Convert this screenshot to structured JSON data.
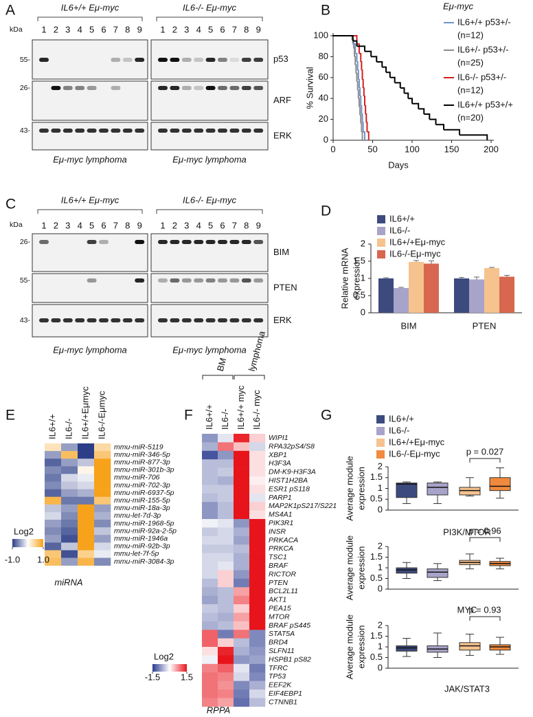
{
  "blots": [
    {
      "panel": "A",
      "groups": [
        {
          "title": "IL6+/+ Eμ-myc",
          "footer": "Eμ-myc lymphoma"
        },
        {
          "title": "IL6-/- Eμ-myc",
          "footer": "Eμ-myc lymphoma"
        }
      ],
      "lanes": [
        1,
        2,
        3,
        4,
        5,
        6,
        7,
        8,
        9
      ],
      "kda": "kDa",
      "rows": [
        {
          "marker": "55-",
          "protein": "p53"
        },
        {
          "marker": "26-",
          "protein": "ARF"
        },
        {
          "marker": "43-",
          "protein": "ERK"
        }
      ]
    },
    {
      "panel": "C",
      "groups": [
        {
          "title": "IL6+/+ Eμ-myc",
          "footer": "Eμ-myc lymphoma"
        },
        {
          "title": "IL6-/- Eμ-myc",
          "footer": "Eμ-myc lymphoma"
        }
      ],
      "lanes": [
        1,
        2,
        3,
        4,
        5,
        6,
        7,
        8,
        9
      ],
      "kda": "kDa",
      "rows": [
        {
          "marker": "26-",
          "protein": "BIM"
        },
        {
          "marker": "55-",
          "protein": "PTEN"
        },
        {
          "marker": "43-",
          "protein": "ERK"
        }
      ]
    }
  ],
  "chart_data": [
    {
      "panel": "B",
      "type": "survival",
      "title": "Eμ-myc",
      "xlabel": "Days",
      "ylabel": "% Survival",
      "xlim": [
        0,
        200
      ],
      "xticks": [
        0,
        50,
        100,
        150,
        200
      ],
      "ylim": [
        0,
        100
      ],
      "yticks": [
        0,
        20,
        40,
        60,
        80,
        100
      ],
      "series": [
        {
          "name": "IL6+/+ p53+/-",
          "n_label": "(n=12)",
          "color": "#6f93c8",
          "x": [
            0,
            25,
            28,
            30,
            31,
            32,
            33,
            34,
            35,
            36,
            37,
            38,
            40
          ],
          "values": [
            100,
            92,
            83,
            75,
            67,
            58,
            50,
            42,
            33,
            25,
            17,
            8,
            0
          ]
        },
        {
          "name": "IL6+/- p53+/-",
          "n_label": "(n=25)",
          "color": "#8c8c8c",
          "x": [
            0,
            24,
            26,
            27,
            28,
            29,
            30,
            31,
            32,
            33,
            34,
            35,
            36,
            37
          ],
          "values": [
            100,
            96,
            88,
            80,
            72,
            64,
            56,
            48,
            40,
            32,
            24,
            16,
            8,
            0
          ]
        },
        {
          "name": "IL6-/- p53+/-",
          "n_label": "(n=12)",
          "color": "#d42020",
          "x": [
            0,
            30,
            33,
            35,
            36,
            37,
            38,
            39,
            40,
            41,
            42,
            43,
            45
          ],
          "values": [
            100,
            92,
            83,
            75,
            67,
            58,
            50,
            42,
            33,
            25,
            17,
            8,
            0
          ]
        },
        {
          "name": "IL6+/+ p53+/+",
          "n_label": "(n=20)",
          "color": "#000000",
          "x": [
            0,
            25,
            30,
            40,
            48,
            55,
            62,
            67,
            72,
            78,
            85,
            90,
            95,
            100,
            108,
            115,
            122,
            130,
            140,
            160,
            195
          ],
          "values": [
            100,
            95,
            90,
            85,
            80,
            75,
            70,
            65,
            60,
            55,
            50,
            45,
            40,
            35,
            30,
            25,
            20,
            15,
            10,
            5,
            0
          ]
        }
      ]
    },
    {
      "panel": "D",
      "type": "bar",
      "ylabel": [
        "Relative mRNA",
        "expression"
      ],
      "categories": [
        "BIM",
        "PTEN"
      ],
      "ylim": [
        0,
        2
      ],
      "yticks": [
        0,
        0.5,
        1,
        1.5,
        2
      ],
      "series": [
        {
          "name": "IL6+/+",
          "color": "#3d4a7e",
          "values": [
            1.0,
            1.0
          ],
          "errors": [
            0.02,
            0.03
          ]
        },
        {
          "name": "IL6-/-",
          "color": "#a8a3c9",
          "values": [
            0.72,
            0.97
          ],
          "errors": [
            0.02,
            0.07
          ]
        },
        {
          "name": "IL6+/+Eμ-myc",
          "color": "#f6c28e",
          "values": [
            1.48,
            1.3
          ],
          "errors": [
            0.04,
            0.02
          ]
        },
        {
          "name": "IL6-/-Eμ-myc",
          "color": "#d8674f",
          "values": [
            1.43,
            1.05
          ],
          "errors": [
            0.08,
            0.04
          ]
        }
      ]
    },
    {
      "panel": "E",
      "type": "heatmap",
      "footer": "miRNA",
      "columns": [
        "IL6+/+",
        "IL6-/-",
        "IL6+/+Eμmyc",
        "IL6-/-Eμmyc"
      ],
      "rows": [
        "mmu-miR-5119",
        "mmu-miR-346-5p",
        "mmu-miR-877-3p",
        "mmu-miR-301b-3p",
        "mmu-miR-706",
        "mmu-miR-702-3p",
        "mmu-miR-6937-5p",
        "mmu-miR-155-5p",
        "mmu-miR-18a-3p",
        "mmu-let-7d-3p",
        "mmu-miR-1968-5p",
        "mmu-miR-92a-2-5p",
        "mmu-miR-1946a",
        "mmu-miR-92b-3p",
        "mmu-let-7f-5p",
        "mmu-miR-3084-3p"
      ],
      "values": [
        [
          0.3,
          -0.5,
          -1,
          0.4
        ],
        [
          -0.5,
          0.7,
          -1,
          0.6
        ],
        [
          -0.8,
          -0.5,
          -0.3,
          1
        ],
        [
          -0.6,
          -0.7,
          0.1,
          1
        ],
        [
          -0.7,
          -0.2,
          -0.1,
          1
        ],
        [
          -0.6,
          -0.3,
          -0.2,
          1
        ],
        [
          -0.8,
          -0.5,
          -0.4,
          1
        ],
        [
          0.8,
          -0.7,
          -0.7,
          0.6
        ],
        [
          -0.3,
          -0.5,
          1,
          -0.5
        ],
        [
          -0.2,
          -0.6,
          1,
          -0.4
        ],
        [
          -0.5,
          -0.7,
          1,
          -0.6
        ],
        [
          -0.6,
          -0.8,
          1,
          -0.3
        ],
        [
          -0.5,
          -0.9,
          1,
          -0.5
        ],
        [
          -0.8,
          -0.3,
          1,
          -0.2
        ],
        [
          0.6,
          -0.9,
          0.5,
          -0.1
        ],
        [
          0.7,
          -0.5,
          0.8,
          -0.6
        ]
      ],
      "colorscale": {
        "title": "Log2",
        "lim": [
          -1,
          1
        ],
        "colors": [
          "#2c3e87",
          "#ffffff",
          "#f7a21b"
        ],
        "ticks": [
          {
            "value": -1,
            "label": "-1.0"
          },
          {
            "value": 1,
            "label": "1.0"
          }
        ]
      }
    },
    {
      "panel": "F",
      "type": "heatmap",
      "footer": "RPPA",
      "column_groups": [
        "BM",
        "lymphoma"
      ],
      "columns": [
        "IL6+/+",
        "IL6-/-",
        "IL6+/+ myc",
        "IL6-/- myc"
      ],
      "rows": [
        "WIPI1",
        "RPA32pS4/S8",
        "XBP1",
        "H3F3A",
        "DM-K9-H3F3A",
        "HIST1H2BA",
        "ESR1 pS118",
        "PARP1",
        "MAP2K1pS217/S221",
        "MS4A1",
        "PIK3R1",
        "INSR",
        "PRKACA",
        "PRKCA",
        "TSC1",
        "BRAF",
        "RICTOR",
        "PTEN",
        "BCL2L11",
        "AKT1",
        "PEA15",
        "MTOR",
        "BRAF pS445",
        "STAT5A",
        "BRD4",
        "SLFN11",
        "HSPB1 pS82",
        "TFRC",
        "TP53",
        "EEF2K",
        "EIF4EBP1",
        "CTNNB1"
      ],
      "values": [
        [
          -0.8,
          -0.2,
          1.4,
          0.3
        ],
        [
          -0.6,
          0.9,
          0.4,
          -0.3
        ],
        [
          -1.3,
          -0.8,
          1.5,
          0.2
        ],
        [
          -0.5,
          -0.5,
          1.5,
          0.2
        ],
        [
          -0.5,
          -0.4,
          1.5,
          0.2
        ],
        [
          -0.5,
          -0.6,
          1.5,
          0.1
        ],
        [
          -0.4,
          -0.4,
          1.5,
          0.2
        ],
        [
          -0.5,
          -0.4,
          1.5,
          -0.2
        ],
        [
          -0.8,
          -0.5,
          1.5,
          0.3
        ],
        [
          -0.8,
          -0.5,
          1.5,
          0.2
        ],
        [
          -0.1,
          -0.2,
          -0.8,
          1.5
        ],
        [
          -0.4,
          -0.3,
          -0.6,
          1.5
        ],
        [
          -0.3,
          -0.3,
          -0.7,
          1.5
        ],
        [
          -0.4,
          -0.4,
          -0.5,
          1.5
        ],
        [
          -0.3,
          -0.3,
          -0.6,
          1.5
        ],
        [
          -0.3,
          -0.2,
          -0.6,
          1.5
        ],
        [
          -0.3,
          0.3,
          -0.8,
          1.5
        ],
        [
          -0.5,
          0.3,
          -1.0,
          1.5
        ],
        [
          -0.6,
          -0.5,
          0.6,
          1.5
        ],
        [
          -0.7,
          -0.5,
          0.8,
          1.5
        ],
        [
          -0.4,
          -0.5,
          0.3,
          1.5
        ],
        [
          -0.5,
          -0.6,
          0.6,
          1.5
        ],
        [
          -0.6,
          -0.5,
          0.4,
          1.5
        ],
        [
          1.0,
          -1.0,
          0.9,
          -0.9
        ],
        [
          1.0,
          0.3,
          -0.5,
          -0.9
        ],
        [
          0.2,
          1.4,
          -0.6,
          -0.8
        ],
        [
          -0.1,
          1.5,
          -0.8,
          -0.7
        ],
        [
          0.8,
          1.0,
          -0.2,
          -1.0
        ],
        [
          0.9,
          0.8,
          -0.3,
          -0.9
        ],
        [
          0.9,
          0.7,
          -0.9,
          -0.6
        ],
        [
          0.9,
          0.8,
          -1.0,
          -0.3
        ],
        [
          0.8,
          0.6,
          -1.1,
          -0.5
        ]
      ],
      "colorscale": {
        "title": "Log2",
        "lim": [
          -1.5,
          1.5
        ],
        "colors": [
          "#2b3a8f",
          "#ffffff",
          "#e8141c"
        ],
        "ticks": [
          -1.5,
          1.5
        ]
      }
    },
    {
      "panel": "G",
      "type": "box",
      "legend": [
        {
          "name": "IL6+/+",
          "color": "#3d4a7e"
        },
        {
          "name": "IL6-/-",
          "color": "#a8a3c9"
        },
        {
          "name": "IL6+/+Eμ-myc",
          "color": "#f6c28e"
        },
        {
          "name": "IL6-/-Eμ-myc",
          "color": "#f08a3e"
        }
      ],
      "plots": [
        {
          "ylabel": [
            "Average module",
            "expression"
          ],
          "caption": "PI3K/MTOR",
          "annotation": "p = 0.027",
          "ylim": [
            0,
            2
          ],
          "yticks": [
            0,
            0.5,
            1,
            1.5,
            2
          ],
          "boxes": [
            {
              "low": 0.3,
              "q1": 0.58,
              "median": 1.2,
              "q3": 1.25,
              "high": 1.3
            },
            {
              "low": 0.3,
              "q1": 0.7,
              "median": 1.05,
              "q3": 1.25,
              "high": 1.3
            },
            {
              "low": 0.65,
              "q1": 0.7,
              "median": 0.9,
              "q3": 1.05,
              "high": 1.5
            },
            {
              "low": 0.55,
              "q1": 0.9,
              "median": 1.1,
              "q3": 1.5,
              "high": 1.95
            }
          ]
        },
        {
          "ylabel": [
            "Average module",
            "expression"
          ],
          "caption": "MYC",
          "annotation": "p = 0.96",
          "ylim": [
            0,
            2
          ],
          "yticks": [
            0,
            0.5,
            1,
            1.5,
            2
          ],
          "boxes": [
            {
              "low": 0.5,
              "q1": 0.75,
              "median": 0.9,
              "q3": 1.0,
              "high": 1.25
            },
            {
              "low": 0.4,
              "q1": 0.55,
              "median": 0.8,
              "q3": 0.95,
              "high": 1.2
            },
            {
              "low": 0.95,
              "q1": 1.15,
              "median": 1.25,
              "q3": 1.35,
              "high": 1.65
            },
            {
              "low": 0.95,
              "q1": 1.1,
              "median": 1.2,
              "q3": 1.3,
              "high": 1.45
            }
          ]
        },
        {
          "ylabel": [
            "Average module",
            "expression"
          ],
          "caption": "JAK/STAT3",
          "annotation": "p = 0.93",
          "ylim": [
            0,
            2
          ],
          "yticks": [
            0,
            0.5,
            1,
            1.5,
            2
          ],
          "boxes": [
            {
              "low": 0.55,
              "q1": 0.8,
              "median": 0.95,
              "q3": 1.05,
              "high": 1.4
            },
            {
              "low": 0.5,
              "q1": 0.75,
              "median": 0.9,
              "q3": 1.05,
              "high": 1.65
            },
            {
              "low": 0.6,
              "q1": 0.85,
              "median": 1.05,
              "q3": 1.2,
              "high": 1.6
            },
            {
              "low": 0.65,
              "q1": 0.85,
              "median": 1.0,
              "q3": 1.1,
              "high": 1.45
            }
          ]
        }
      ]
    }
  ]
}
